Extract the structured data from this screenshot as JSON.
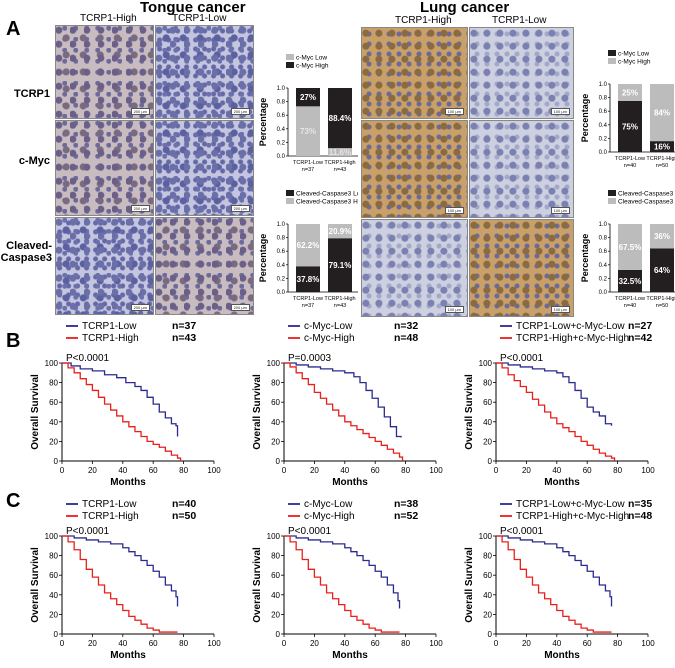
{
  "panels": {
    "a": "A",
    "b": "B",
    "c": "C"
  },
  "titles": {
    "tongue": "Tongue cancer",
    "lung": "Lung cancer"
  },
  "col_labels": {
    "high": "TCRP1-High",
    "low": "TCRP1-Low"
  },
  "row_labels": {
    "tcrp1": "TCRP1",
    "cmyc": "c-Myc",
    "casp_1": "Cleaved-",
    "casp_2": "Caspase3"
  },
  "scales": {
    "tongue": "200 μm",
    "lung": "100 μm"
  },
  "colors": {
    "black": "#231f20",
    "gray": "#bcbcbc",
    "blue": "#2b2b8f",
    "red": "#e8201c"
  },
  "chart_data": [
    {
      "id": "tongue-cmyc",
      "type": "bar",
      "stacked": true,
      "ylabel": "Percentage",
      "ylim": [
        0,
        1
      ],
      "yticks": [
        "0.0",
        "0.2",
        "0.4",
        "0.6",
        "0.8",
        "1.0"
      ],
      "legend": [
        {
          "name": "c-Myc Low",
          "color": "gray"
        },
        {
          "name": "c-Myc High",
          "color": "black"
        }
      ],
      "categories": [
        {
          "name": "TCRP1-Low",
          "n": "n=37"
        },
        {
          "name": "TCRP1-High",
          "n": "n=43"
        }
      ],
      "bottom": {
        "values": [
          0.73,
          0.116
        ],
        "labels": [
          "73%",
          "11.6%"
        ],
        "colors": [
          "gray",
          "gray"
        ],
        "text": [
          "gray",
          "gray"
        ]
      },
      "top": {
        "values": [
          0.27,
          0.884
        ],
        "labels": [
          "27%",
          "88.4%"
        ],
        "colors": [
          "black",
          "black"
        ],
        "text": [
          "white",
          "white"
        ]
      }
    },
    {
      "id": "tongue-casp",
      "type": "bar",
      "stacked": true,
      "ylabel": "Percentage",
      "ylim": [
        0,
        1
      ],
      "yticks": [
        "0.0",
        "0.2",
        "0.4",
        "0.6",
        "0.8",
        "1.0"
      ],
      "legend": [
        {
          "name": "Cleaved-Caspase3 Low",
          "color": "black"
        },
        {
          "name": "Cleaved-Caspase3 High",
          "color": "gray"
        }
      ],
      "categories": [
        {
          "name": "TCRP1-Low",
          "n": "n=37"
        },
        {
          "name": "TCRP1-High",
          "n": "n=43"
        }
      ],
      "bottom": {
        "values": [
          0.378,
          0.791
        ],
        "labels": [
          "37.8%",
          "79.1%"
        ],
        "colors": [
          "black",
          "black"
        ],
        "text": [
          "white",
          "white"
        ]
      },
      "top": {
        "values": [
          0.622,
          0.209
        ],
        "labels": [
          "62.2%",
          "20.9%"
        ],
        "colors": [
          "gray",
          "gray"
        ],
        "text": [
          "white",
          "white"
        ]
      }
    },
    {
      "id": "lung-cmyc",
      "type": "bar",
      "stacked": true,
      "ylabel": "Percentage",
      "ylim": [
        0,
        1
      ],
      "yticks": [
        "0.0",
        "0.2",
        "0.4",
        "0.6",
        "0.8",
        "1.0"
      ],
      "legend": [
        {
          "name": "c-Myc Low",
          "color": "black"
        },
        {
          "name": "c-Myc High",
          "color": "gray"
        }
      ],
      "categories": [
        {
          "name": "TCRP1-Low",
          "n": "n=40"
        },
        {
          "name": "TCRP1-High",
          "n": "n=50"
        }
      ],
      "bottom": {
        "values": [
          0.75,
          0.16
        ],
        "labels": [
          "75%",
          "16%"
        ],
        "colors": [
          "black",
          "black"
        ],
        "text": [
          "white",
          "white"
        ]
      },
      "top": {
        "values": [
          0.25,
          0.84
        ],
        "labels": [
          "25%",
          "84%"
        ],
        "colors": [
          "gray",
          "gray"
        ],
        "text": [
          "white",
          "white"
        ]
      }
    },
    {
      "id": "lung-casp",
      "type": "bar",
      "stacked": true,
      "ylabel": "Percentage",
      "ylim": [
        0,
        1
      ],
      "yticks": [
        "0.0",
        "0.2",
        "0.4",
        "0.6",
        "0.8",
        "1.0"
      ],
      "legend": [
        {
          "name": "Cleaved-Caspase3 Low",
          "color": "black"
        },
        {
          "name": "Cleaved-Caspase3 High",
          "color": "gray"
        }
      ],
      "categories": [
        {
          "name": "TCRP1-Low",
          "n": "n=40"
        },
        {
          "name": "TCRP1-High",
          "n": "n=50"
        }
      ],
      "bottom": {
        "values": [
          0.325,
          0.64
        ],
        "labels": [
          "32.5%",
          "64%"
        ],
        "colors": [
          "black",
          "black"
        ],
        "text": [
          "white",
          "white"
        ]
      },
      "top": {
        "values": [
          0.675,
          0.36
        ],
        "labels": [
          "67.5%",
          "36%"
        ],
        "colors": [
          "gray",
          "gray"
        ],
        "text": [
          "white",
          "white"
        ]
      }
    },
    {
      "id": "B1",
      "type": "line",
      "xlabel": "Months",
      "ylabel": "Overall Survival",
      "xlim": [
        0,
        100
      ],
      "ylim": [
        0,
        100
      ],
      "ticks": [
        "0",
        "20",
        "40",
        "60",
        "80",
        "100"
      ],
      "p": "P<0.0001",
      "series": [
        {
          "name": "TCRP1-Low",
          "n": "n=37",
          "color": "blue",
          "x": [
            0,
            6,
            12,
            20,
            28,
            36,
            42,
            48,
            52,
            56,
            60,
            64,
            68,
            72,
            75,
            76
          ],
          "y": [
            100,
            97,
            94,
            92,
            88,
            85,
            80,
            76,
            72,
            65,
            58,
            50,
            44,
            38,
            36,
            25
          ]
        },
        {
          "name": "TCRP1-High",
          "n": "n=43",
          "color": "red",
          "x": [
            0,
            4,
            8,
            12,
            16,
            20,
            24,
            28,
            32,
            36,
            40,
            44,
            48,
            52,
            56,
            60,
            64,
            68,
            72,
            76,
            78
          ],
          "y": [
            100,
            95,
            90,
            84,
            78,
            72,
            65,
            58,
            52,
            46,
            40,
            35,
            30,
            25,
            20,
            17,
            14,
            10,
            6,
            3,
            0
          ]
        }
      ]
    },
    {
      "id": "B2",
      "type": "line",
      "xlabel": "Months",
      "ylabel": "Overall Survival",
      "xlim": [
        0,
        100
      ],
      "ylim": [
        0,
        100
      ],
      "ticks": [
        "0",
        "20",
        "40",
        "60",
        "80",
        "100"
      ],
      "p": "P=0.0003",
      "series": [
        {
          "name": "c-Myc-Low",
          "n": "n=32",
          "color": "blue",
          "x": [
            0,
            8,
            16,
            24,
            32,
            40,
            46,
            50,
            54,
            58,
            62,
            66,
            70,
            74,
            77
          ],
          "y": [
            100,
            98,
            96,
            94,
            92,
            90,
            86,
            80,
            72,
            64,
            55,
            45,
            35,
            25,
            24
          ]
        },
        {
          "name": "c-Myc-High",
          "n": "n=48",
          "color": "red",
          "x": [
            0,
            4,
            8,
            12,
            16,
            20,
            24,
            28,
            32,
            36,
            40,
            44,
            48,
            52,
            56,
            60,
            64,
            68,
            72,
            76,
            78
          ],
          "y": [
            100,
            96,
            90,
            84,
            78,
            70,
            64,
            58,
            52,
            46,
            40,
            36,
            32,
            28,
            24,
            20,
            16,
            12,
            8,
            4,
            0
          ]
        }
      ]
    },
    {
      "id": "B3",
      "type": "line",
      "xlabel": "Months",
      "ylabel": "Overall Survival",
      "xlim": [
        0,
        100
      ],
      "ylim": [
        0,
        100
      ],
      "ticks": [
        "0",
        "20",
        "40",
        "60",
        "80",
        "100"
      ],
      "p": "P<0.0001",
      "series": [
        {
          "name": "TCRP1-Low+c-Myc-Low",
          "n": "n=27",
          "color": "blue",
          "x": [
            0,
            8,
            16,
            24,
            32,
            40,
            44,
            48,
            52,
            56,
            60,
            64,
            68,
            72,
            76
          ],
          "y": [
            100,
            98,
            96,
            94,
            92,
            90,
            86,
            80,
            72,
            64,
            55,
            50,
            46,
            38,
            36
          ]
        },
        {
          "name": "TCRP1-High+c-Myc-High",
          "n": "n=42",
          "color": "red",
          "x": [
            0,
            4,
            8,
            12,
            16,
            20,
            24,
            28,
            32,
            36,
            40,
            44,
            48,
            52,
            56,
            60,
            64,
            68,
            72,
            76,
            78
          ],
          "y": [
            100,
            95,
            88,
            82,
            76,
            70,
            63,
            57,
            50,
            44,
            38,
            34,
            30,
            25,
            20,
            16,
            12,
            8,
            5,
            3,
            0
          ]
        }
      ]
    },
    {
      "id": "C1",
      "type": "line",
      "xlabel": "Months",
      "ylabel": "Overall Survival",
      "xlim": [
        0,
        100
      ],
      "ylim": [
        0,
        100
      ],
      "ticks": [
        "0",
        "20",
        "40",
        "60",
        "80",
        "100"
      ],
      "p": "P<0.0001",
      "series": [
        {
          "name": "TCRP1-Low",
          "n": "n=40",
          "color": "blue",
          "x": [
            0,
            8,
            16,
            24,
            32,
            40,
            44,
            48,
            52,
            56,
            60,
            64,
            68,
            72,
            75,
            76
          ],
          "y": [
            100,
            98,
            96,
            94,
            92,
            88,
            84,
            80,
            75,
            70,
            64,
            58,
            50,
            44,
            38,
            28
          ]
        },
        {
          "name": "TCRP1-High",
          "n": "n=50",
          "color": "red",
          "x": [
            0,
            4,
            8,
            12,
            16,
            20,
            24,
            28,
            32,
            36,
            40,
            44,
            48,
            52,
            56,
            60,
            64,
            68,
            72,
            76
          ],
          "y": [
            100,
            94,
            86,
            76,
            66,
            58,
            50,
            42,
            36,
            30,
            24,
            18,
            14,
            10,
            6,
            4,
            2,
            2,
            2,
            2
          ]
        }
      ]
    },
    {
      "id": "C2",
      "type": "line",
      "xlabel": "Months",
      "ylabel": "Overall Survival",
      "xlim": [
        0,
        100
      ],
      "ylim": [
        0,
        100
      ],
      "ticks": [
        "0",
        "20",
        "40",
        "60",
        "80",
        "100"
      ],
      "p": "P<0.0001",
      "series": [
        {
          "name": "c-Myc-Low",
          "n": "n=38",
          "color": "blue",
          "x": [
            0,
            8,
            16,
            24,
            32,
            40,
            44,
            48,
            52,
            56,
            60,
            64,
            68,
            72,
            75,
            76
          ],
          "y": [
            100,
            98,
            96,
            94,
            92,
            88,
            84,
            80,
            75,
            70,
            64,
            58,
            50,
            42,
            34,
            26
          ]
        },
        {
          "name": "c-Myc-High",
          "n": "n=52",
          "color": "red",
          "x": [
            0,
            4,
            8,
            12,
            16,
            20,
            24,
            28,
            32,
            36,
            40,
            44,
            48,
            52,
            56,
            60,
            64,
            68,
            72,
            76
          ],
          "y": [
            100,
            94,
            86,
            76,
            66,
            58,
            50,
            42,
            36,
            30,
            24,
            18,
            14,
            10,
            6,
            4,
            2,
            2,
            2,
            2
          ]
        }
      ]
    },
    {
      "id": "C3",
      "type": "line",
      "xlabel": "Months",
      "ylabel": "Overall Survival",
      "xlim": [
        0,
        100
      ],
      "ylim": [
        0,
        100
      ],
      "ticks": [
        "0",
        "20",
        "40",
        "60",
        "80",
        "100"
      ],
      "p": "P<0.0001",
      "series": [
        {
          "name": "TCRP1-Low+c-Myc-Low",
          "n": "n=35",
          "color": "blue",
          "x": [
            0,
            8,
            16,
            24,
            32,
            40,
            44,
            48,
            52,
            56,
            60,
            64,
            68,
            72,
            75,
            76
          ],
          "y": [
            100,
            98,
            96,
            94,
            92,
            88,
            84,
            80,
            75,
            70,
            64,
            58,
            50,
            44,
            38,
            28
          ]
        },
        {
          "name": "TCRP1-High+c-Myc-High",
          "n": "n=48",
          "color": "red",
          "x": [
            0,
            4,
            8,
            12,
            16,
            20,
            24,
            28,
            32,
            36,
            40,
            44,
            48,
            52,
            56,
            60,
            64,
            68,
            72,
            76
          ],
          "y": [
            100,
            94,
            86,
            76,
            66,
            58,
            50,
            42,
            36,
            30,
            24,
            18,
            14,
            10,
            6,
            4,
            2,
            2,
            2,
            2
          ]
        }
      ]
    }
  ]
}
